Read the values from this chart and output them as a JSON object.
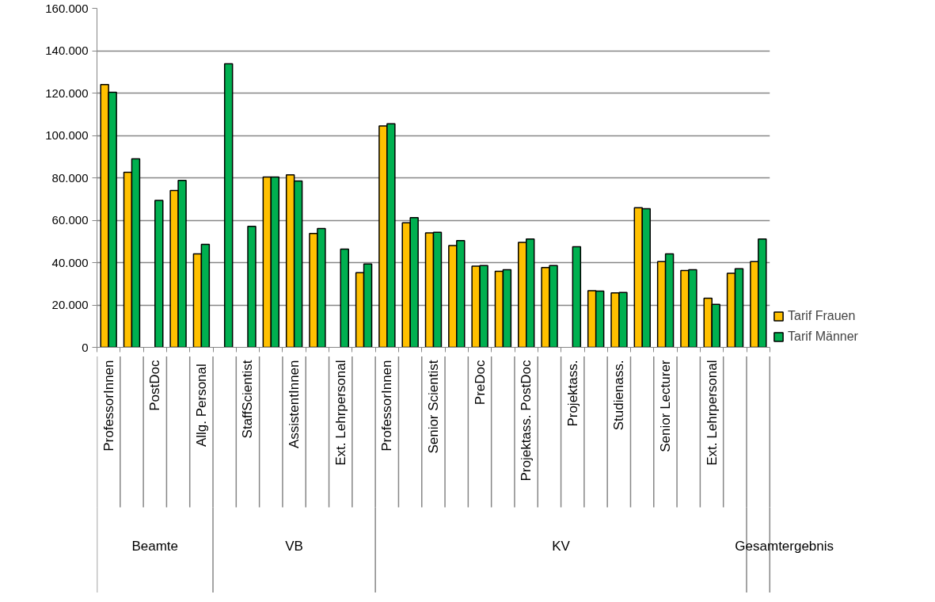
{
  "chart_data": {
    "type": "bar",
    "categories": [
      "ProfessorInnen",
      null,
      "PostDoc",
      null,
      "Allg.  Personal",
      null,
      "StaffScientist",
      null,
      "AssistentInnen",
      null,
      "Ext. Lehrpersonal",
      null,
      "ProfessorInnen",
      null,
      "Senior Scientist",
      null,
      "PreDoc",
      null,
      "Projektass. PostDoc",
      null,
      "Projektass.",
      null,
      "Studienass.",
      null,
      "Senior Lecturer",
      null,
      "Ext. Lehrpersonal",
      null,
      null
    ],
    "annotations": [
      "Beamte",
      "VB",
      "KV",
      "Gesamtergebnis"
    ],
    "series": [
      {
        "name": "Tarif Frauen",
        "color": "#ffc000",
        "values": [
          124000,
          82600,
          null,
          74000,
          44100,
          null,
          null,
          80400,
          81400,
          53700,
          null,
          35200,
          104500,
          58800,
          54000,
          48000,
          38300,
          35900,
          49500,
          37700,
          null,
          26700,
          25700,
          65900,
          40500,
          36300,
          23200,
          35000,
          40500
        ]
      },
      {
        "name": "Tarif Männer",
        "color": "#00b050",
        "values": [
          120400,
          89000,
          69300,
          78800,
          48600,
          133800,
          57100,
          80400,
          78500,
          56100,
          46400,
          39300,
          105500,
          61200,
          54300,
          50400,
          38600,
          36600,
          51100,
          38600,
          47500,
          26500,
          25900,
          65400,
          44100,
          36600,
          20300,
          37100,
          51100
        ]
      }
    ],
    "ylim": [
      0,
      160000
    ],
    "yticks": [
      0,
      {
        "value": 20000,
        "label": "20.000"
      },
      {
        "value": 40000,
        "label": "40.000"
      },
      {
        "value": 60000,
        "label": "60.000"
      },
      {
        "value": 80000,
        "label": "80.000"
      },
      {
        "value": 100000,
        "label": "100.000"
      },
      {
        "value": 120000,
        "label": "120.000"
      },
      {
        "value": 140000,
        "label": "140.000"
      },
      {
        "value": 160000,
        "label": "160.000"
      }
    ],
    "grid": "y",
    "legend": "right"
  }
}
